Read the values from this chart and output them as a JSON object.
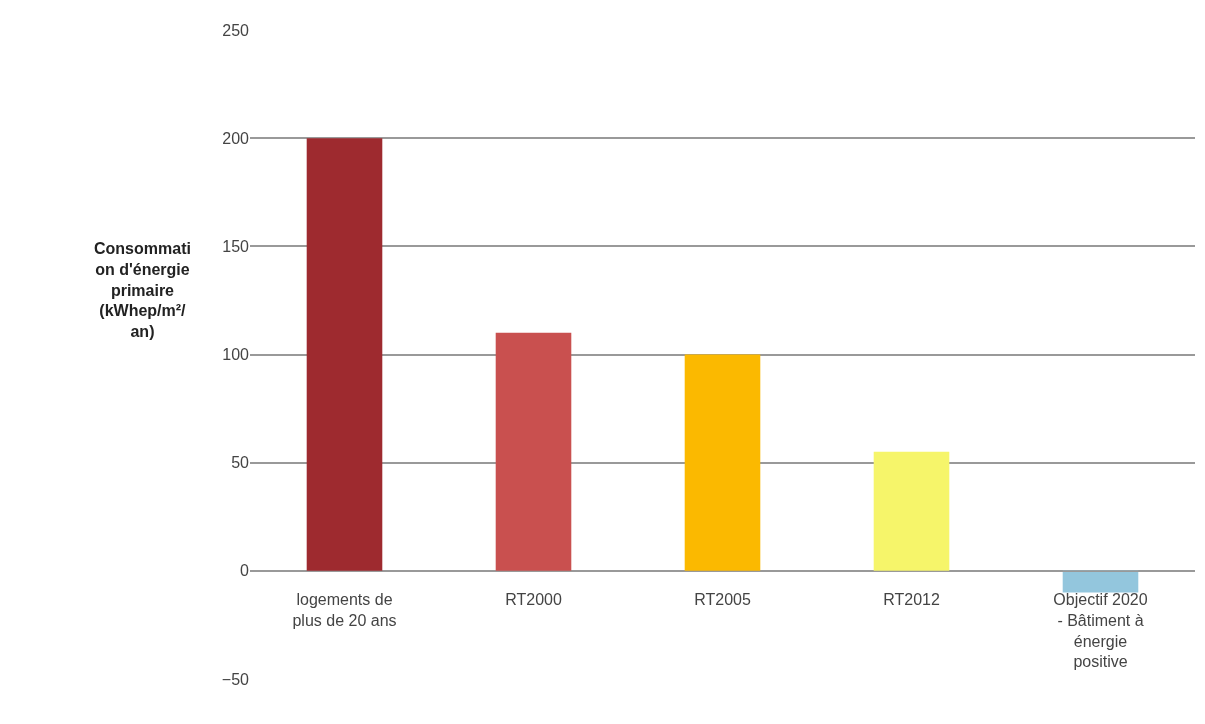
{
  "chart_data": {
    "type": "bar",
    "ylabel": "Consommati\non d'énergie\nprimaire\n(kWhep/m²/\nan)",
    "categories": [
      "logements de\nplus de 20 ans",
      "RT2000",
      "RT2005",
      "RT2012",
      "Objectif 2020\n- Bâtiment à\nénergie\npositive"
    ],
    "values": [
      200,
      110,
      100,
      55,
      -10
    ],
    "colors": [
      "#9e2a2f",
      "#c9504f",
      "#fbb900",
      "#f6f56a",
      "#93c6dd"
    ],
    "ylim": [
      -50,
      250
    ],
    "yticks": [
      -50,
      0,
      50,
      100,
      150,
      200,
      250
    ],
    "grid": "y"
  }
}
